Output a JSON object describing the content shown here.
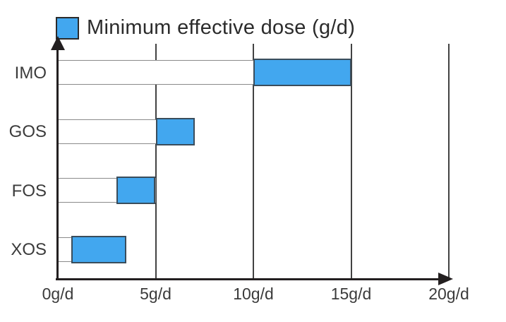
{
  "legend": {
    "label": "Minimum effective dose (g/d)",
    "swatch_color": "#42a7ef"
  },
  "colors": {
    "bar_fill": "#42a7ef",
    "bar_border": "#3a4d5c",
    "track_border": "#8a8a8a",
    "axis": "#231f20",
    "gridline": "#424242",
    "text": "#3b3b3b",
    "background": "#ffffff"
  },
  "chart_data": {
    "type": "bar",
    "orientation": "horizontal",
    "title": "",
    "xlabel": "",
    "ylabel": "",
    "unit": "g/d",
    "categories": [
      "IMO",
      "GOS",
      "FOS",
      "XOS"
    ],
    "bars": [
      {
        "category": "IMO",
        "min": 10,
        "max": 15
      },
      {
        "category": "GOS",
        "min": 5,
        "max": 7
      },
      {
        "category": "FOS",
        "min": 3,
        "max": 5
      },
      {
        "category": "XOS",
        "min": 0.7,
        "max": 3.5
      }
    ],
    "series": [
      {
        "name": "Minimum effective dose (g/d)",
        "ranges": [
          [
            10,
            15
          ],
          [
            5,
            7
          ],
          [
            3,
            5
          ],
          [
            0.7,
            3.5
          ]
        ]
      }
    ],
    "x_axis": {
      "range": [
        0,
        20
      ],
      "ticks": [
        0,
        5,
        10,
        15,
        20
      ],
      "tick_labels": [
        "0g/d",
        "5g/d",
        "10g/d",
        "15g/d",
        "20g/d"
      ]
    },
    "grid": "vertical-gridlines-at-ticks",
    "legend_position": "top-left"
  }
}
